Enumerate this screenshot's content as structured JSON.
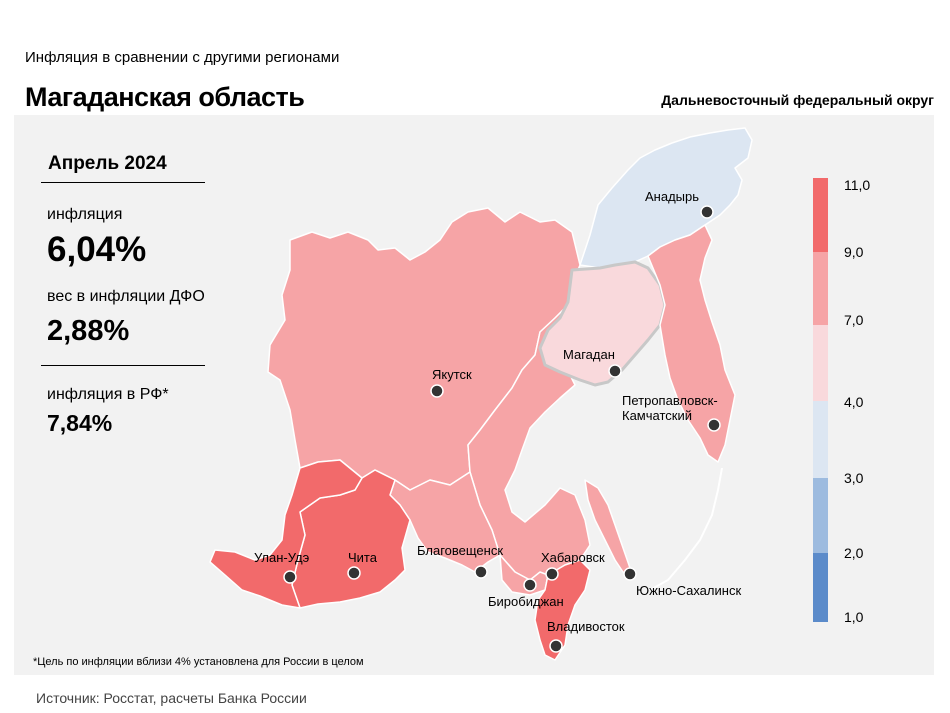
{
  "header": {
    "subtitle": "Инфляция в сравнении с другими регионами",
    "title": "Магаданская область",
    "district": "Дальневосточный федеральный округ"
  },
  "stats": {
    "period": "Апрель 2024",
    "inflation_label": "инфляция",
    "inflation_value": "6,04%",
    "weight_label": "вес в инфляции ДФО",
    "weight_value": "2,88%",
    "rf_label": "инфляция в РФ*",
    "rf_value": "7,84%"
  },
  "legend": {
    "ticks": [
      "11,0",
      "9,0",
      "7,0",
      "4,0",
      "3,0",
      "2,0",
      "1,0"
    ],
    "colors": [
      "#f26a6b",
      "#f6a4a6",
      "#f9d9dc",
      "#dce6f2",
      "#9dbbdf",
      "#5b8bca"
    ]
  },
  "cities": {
    "anadyr": "Анадырь",
    "magadan": "Магадан",
    "yakutsk": "Якутск",
    "petropavlovsk_1": "Петропавловск-",
    "petropavlovsk_2": "Камчатский",
    "ulan_ude": "Улан-Удэ",
    "chita": "Чита",
    "blagoveshchensk": "Благовещенск",
    "khabarovsk": "Хабаровск",
    "yuzhno": "Южно-Сахалинск",
    "birobidzhan": "Биробиджан",
    "vladivostok": "Владивосток"
  },
  "footnote": "*Цель по инфляции вблизи 4% установлена для России в целом",
  "source": "Источник: Росстат, расчеты Банка России"
}
